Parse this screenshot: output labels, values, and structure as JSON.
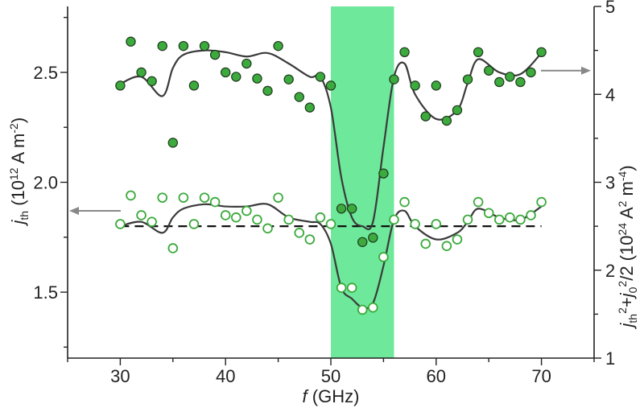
{
  "chart_data": {
    "type": "scatter",
    "xlabel_italic": "f",
    "xlabel_unit": "(GHz)",
    "ylabel_left_main": "j",
    "ylabel_left_sub": "th",
    "ylabel_left_unit": "(10",
    "ylabel_left_exp": "12",
    "ylabel_left_rest": "A m",
    "ylabel_left_rest_exp": "-2",
    "ylabel_right_text": "j_th^2 + j_0^2/2 (10^24 A^2 m^-4)",
    "x_range": [
      25,
      75
    ],
    "y_left_range": [
      1.2,
      2.8
    ],
    "y_right_range": [
      1,
      5
    ],
    "x_ticks": [
      30,
      40,
      50,
      60,
      70
    ],
    "x_tick_labels": [
      "30",
      "40",
      "50",
      "60",
      "70"
    ],
    "y_left_ticks": [
      1.5,
      2.0,
      2.5
    ],
    "y_left_tick_labels": [
      "1.5",
      "2.0",
      "2.5"
    ],
    "y_right_ticks": [
      1,
      2,
      3,
      4,
      5
    ],
    "y_right_tick_labels": [
      "1",
      "2",
      "3",
      "4",
      "5"
    ],
    "highlight_band": {
      "x_from": 50,
      "x_to": 56,
      "color": "#6ee89a"
    },
    "threshold_line": {
      "y_left": 1.8,
      "style": "dashed"
    },
    "series": [
      {
        "name": "j_th^2 + j_0^2/2 (filled, right axis)",
        "axis": "right",
        "marker": "filled",
        "color": "#3caa3c",
        "x": [
          30,
          31,
          32,
          33,
          34,
          35,
          36,
          37,
          38,
          39,
          40,
          41,
          42,
          43,
          44,
          45,
          46,
          47,
          48,
          49,
          50,
          51,
          52,
          53,
          54,
          55,
          56,
          57,
          58,
          59,
          60,
          61,
          62,
          63,
          64,
          65,
          66,
          67,
          68,
          69,
          70
        ],
        "y": [
          4.1,
          4.6,
          4.25,
          4.15,
          4.55,
          3.45,
          4.55,
          4.1,
          4.55,
          4.45,
          4.25,
          4.2,
          4.35,
          4.18,
          4.04,
          4.55,
          4.17,
          3.97,
          3.85,
          4.2,
          4.1,
          2.7,
          2.7,
          2.32,
          2.37,
          3.1,
          4.17,
          4.48,
          4.1,
          3.75,
          4.1,
          3.7,
          3.82,
          4.17,
          4.48,
          4.27,
          4.14,
          4.2,
          4.14,
          4.25,
          4.48
        ]
      },
      {
        "name": "j_th (open, left axis)",
        "axis": "left",
        "marker": "open",
        "color": "#3caa3c",
        "x": [
          30,
          31,
          32,
          33,
          34,
          35,
          36,
          37,
          38,
          39,
          40,
          41,
          42,
          43,
          44,
          45,
          46,
          47,
          48,
          49,
          50,
          51,
          52,
          53,
          54,
          55,
          56,
          57,
          58,
          59,
          60,
          61,
          62,
          63,
          64,
          65,
          66,
          67,
          68,
          69,
          70
        ],
        "y": [
          1.81,
          1.94,
          1.85,
          1.82,
          1.93,
          1.7,
          1.93,
          1.81,
          1.93,
          1.91,
          1.85,
          1.84,
          1.87,
          1.83,
          1.79,
          1.93,
          1.83,
          1.77,
          1.74,
          1.84,
          1.81,
          1.52,
          1.52,
          1.42,
          1.43,
          1.66,
          1.83,
          1.91,
          1.81,
          1.72,
          1.81,
          1.71,
          1.74,
          1.83,
          1.91,
          1.86,
          1.83,
          1.84,
          1.83,
          1.85,
          1.91
        ]
      }
    ],
    "fits": [
      {
        "name": "fit upper (right axis)",
        "axis": "right",
        "x": [
          30,
          32,
          34,
          35,
          36,
          38,
          40,
          42,
          44,
          46,
          48,
          49,
          50,
          51,
          52,
          53,
          54,
          55,
          56,
          57,
          58,
          60,
          62,
          63,
          64,
          66,
          68,
          70
        ],
        "y": [
          4.12,
          4.2,
          3.98,
          4.3,
          4.45,
          4.5,
          4.48,
          4.43,
          4.47,
          4.35,
          4.2,
          4.2,
          3.85,
          3.05,
          2.6,
          2.5,
          2.55,
          3.4,
          4.2,
          4.35,
          4.0,
          3.72,
          3.82,
          4.13,
          4.4,
          4.25,
          4.23,
          4.47
        ]
      },
      {
        "name": "fit lower (left axis)",
        "axis": "left",
        "x": [
          30,
          32,
          34,
          35,
          36,
          38,
          40,
          42,
          44,
          46,
          48,
          49,
          50,
          51,
          52,
          53,
          54,
          55,
          56,
          57,
          58,
          60,
          62,
          63,
          64,
          66,
          68,
          70
        ],
        "y": [
          1.8,
          1.82,
          1.77,
          1.84,
          1.88,
          1.9,
          1.89,
          1.89,
          1.9,
          1.84,
          1.82,
          1.81,
          1.72,
          1.52,
          1.47,
          1.43,
          1.45,
          1.62,
          1.83,
          1.87,
          1.8,
          1.74,
          1.77,
          1.82,
          1.88,
          1.84,
          1.83,
          1.89
        ]
      }
    ],
    "arrows": [
      {
        "name": "left-axis-arrow",
        "direction": "left",
        "points_to": "left axis"
      },
      {
        "name": "right-axis-arrow",
        "direction": "right",
        "points_to": "right axis"
      }
    ]
  }
}
